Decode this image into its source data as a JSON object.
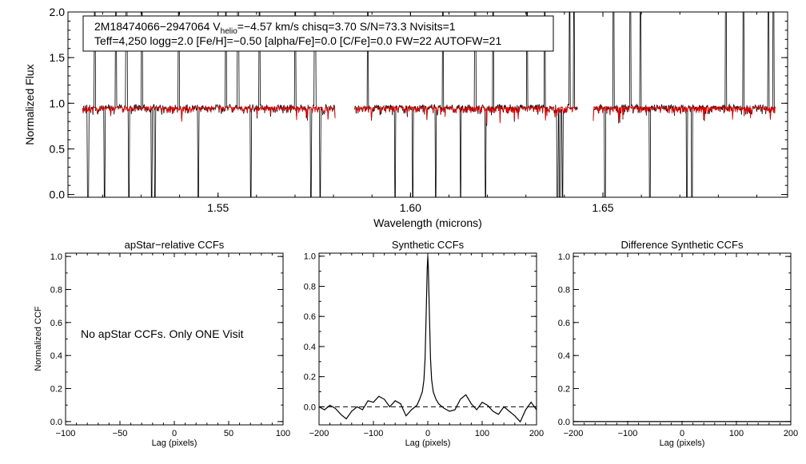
{
  "chart_data": [
    {
      "type": "line",
      "id": "spectrum",
      "title_line1_pre": "2M18474066−2947064  V",
      "title_sub": "helio",
      "title_line1_post": "=−4.57 km/s  chisq=3.70  S/N=73.3  Nvisits=1",
      "title_line2": "Teff=4,250 logg=2.0 [Fe/H]=−0.50 [alpha/Fe]=0.0 [C/Fe]=0.0 FW=22 AUTOFW=21",
      "xlabel": "Wavelength (microns)",
      "ylabel": "Normalized Flux",
      "xlim": [
        1.511,
        1.698
      ],
      "ylim": [
        -0.03,
        2.0
      ],
      "xticks": [
        1.55,
        1.6,
        1.65
      ],
      "xtick_labels": [
        "1.55",
        "1.60",
        "1.65"
      ],
      "yticks": [
        0.0,
        0.5,
        1.0,
        1.5,
        2.0
      ],
      "ytick_labels": [
        "0.0",
        "0.5",
        "1.0",
        "1.5",
        "2.0"
      ],
      "chip_ranges": [
        [
          1.5148,
          1.5805
        ],
        [
          1.5855,
          1.6435
        ],
        [
          1.6475,
          1.6948
        ]
      ],
      "series": [
        {
          "name": "observed",
          "color": "#000000"
        },
        {
          "name": "model",
          "color": "#e00000"
        }
      ],
      "strong_absorptions": [
        1.5162,
        1.5205,
        1.5268,
        1.5328,
        1.5336,
        1.5448,
        1.5585,
        1.5742,
        1.5765,
        1.596,
        1.6006,
        1.6066,
        1.613,
        1.6195,
        1.6382,
        1.6388,
        1.6395,
        1.6505,
        1.6622,
        1.6718,
        1.6731,
        1.6865
      ],
      "emission_spikes": [
        1.518,
        1.5235,
        1.5262,
        1.5302,
        1.5398,
        1.552,
        1.5552,
        1.5608,
        1.57,
        1.5752,
        1.5889,
        1.6084,
        1.6168,
        1.6215,
        1.6303,
        1.6349,
        1.6414,
        1.6425,
        1.6528,
        1.6571,
        1.6598,
        1.682,
        1.6865,
        1.693,
        1.6943
      ]
    },
    {
      "type": "line",
      "id": "apstar-ccf",
      "title": "apStar−relative CCFs",
      "xlabel": "Lag (pixels)",
      "ylabel": "Normalized CCF",
      "xlim": [
        -100,
        100
      ],
      "ylim": [
        -0.02,
        1.02
      ],
      "xticks": [
        -100,
        -50,
        0,
        50,
        100
      ],
      "xtick_labels": [
        "−100",
        "−50",
        "0",
        "50",
        "100"
      ],
      "yticks": [
        0.0,
        0.2,
        0.4,
        0.6,
        0.8,
        1.0
      ],
      "ytick_labels": [
        "0.0",
        "0.2",
        "0.4",
        "0.6",
        "0.8",
        "1.0"
      ],
      "message": "No apStar CCFs.  Only ONE Visit"
    },
    {
      "type": "line",
      "id": "synthetic-ccf",
      "title": "Synthetic CCFs",
      "xlabel": "Lag (pixels)",
      "ylabel": "",
      "xlim": [
        -200,
        200
      ],
      "ylim": [
        -0.12,
        1.02
      ],
      "xticks": [
        -200,
        -100,
        0,
        100,
        200
      ],
      "xtick_labels": [
        "−200",
        "−100",
        "0",
        "100",
        "200"
      ],
      "yticks": [
        0.0,
        0.2,
        0.4,
        0.6,
        0.8,
        1.0
      ],
      "ytick_labels": [
        "0.0",
        "0.2",
        "0.4",
        "0.6",
        "0.8",
        "1.0"
      ],
      "zero_line": 0.0,
      "x": [
        -200,
        -190,
        -180,
        -170,
        -160,
        -150,
        -140,
        -130,
        -120,
        -110,
        -100,
        -90,
        -80,
        -70,
        -60,
        -50,
        -40,
        -30,
        -20,
        -15,
        -10,
        -7,
        -5,
        -3,
        -1,
        0,
        1,
        3,
        5,
        7,
        10,
        15,
        20,
        30,
        40,
        50,
        60,
        70,
        80,
        90,
        100,
        110,
        120,
        130,
        140,
        150,
        160,
        170,
        180,
        190,
        200
      ],
      "y": [
        0.0,
        -0.02,
        0.01,
        -0.01,
        -0.05,
        -0.08,
        -0.03,
        0.0,
        -0.02,
        0.04,
        0.03,
        0.07,
        0.05,
        0.0,
        0.04,
        0.02,
        -0.06,
        -0.02,
        0.01,
        0.05,
        0.1,
        0.18,
        0.32,
        0.62,
        0.92,
        1.0,
        0.92,
        0.62,
        0.32,
        0.18,
        0.1,
        0.05,
        0.02,
        -0.01,
        -0.03,
        -0.02,
        0.05,
        0.08,
        0.02,
        -0.02,
        0.03,
        0.01,
        -0.03,
        -0.05,
        0.0,
        -0.03,
        -0.06,
        -0.1,
        -0.02,
        0.03,
        -0.02
      ]
    },
    {
      "type": "line",
      "id": "difference-ccf",
      "title": "Difference Synthetic CCFs",
      "xlabel": "Lag (pixels)",
      "ylabel": "",
      "xlim": [
        -200,
        200
      ],
      "ylim": [
        -0.02,
        1.02
      ],
      "xticks": [
        -200,
        -100,
        0,
        100,
        200
      ],
      "xtick_labels": [
        "−200",
        "−100",
        "0",
        "100",
        "200"
      ],
      "yticks": [
        0.0,
        0.2,
        0.4,
        0.6,
        0.8,
        1.0
      ],
      "ytick_labels": [
        "0.0",
        "0.2",
        "0.4",
        "0.6",
        "0.8",
        "1.0"
      ],
      "x": [
        -200,
        200
      ],
      "y": [
        0.0,
        0.0
      ]
    }
  ]
}
